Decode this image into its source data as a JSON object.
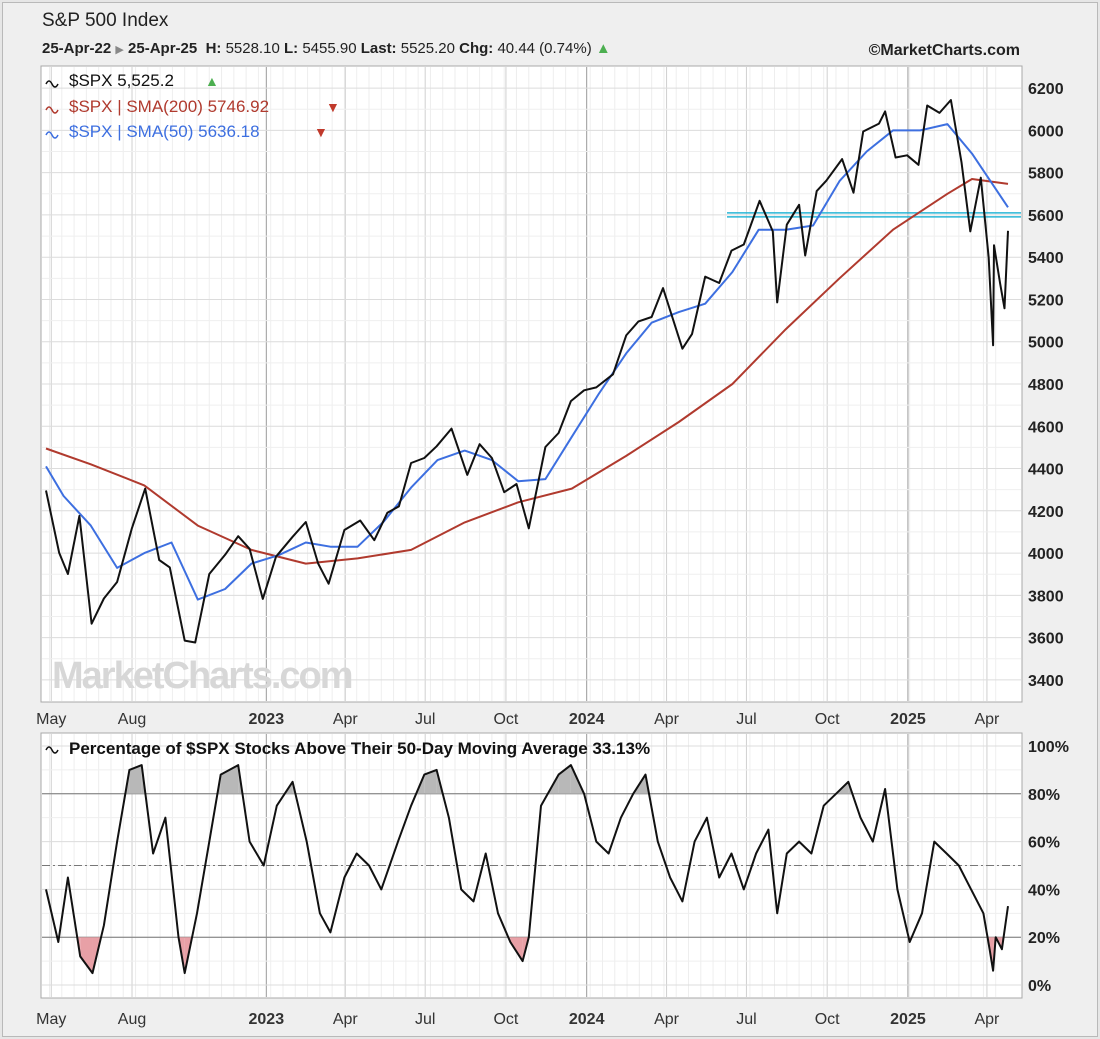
{
  "header": {
    "title": "S&P 500 Index",
    "start_date": "25-Apr-22",
    "end_date": "25-Apr-25",
    "high_label": "H:",
    "high": "5528.10",
    "low_label": "L:",
    "low": "5455.90",
    "last_label": "Last:",
    "last": "5525.20",
    "chg_label": "Chg:",
    "chg": "40.44 (0.74%)",
    "copyright": "©MarketCharts.com"
  },
  "legend": {
    "price": "$SPX 5,525.2",
    "sma200": "$SPX | SMA(200) 5746.92",
    "sma50": "$SPX | SMA(50) 5636.18",
    "breadth": "Percentage of $SPX Stocks Above Their 50-Day Moving Average 33.13%"
  },
  "watermark": "MarketCharts.com",
  "colors": {
    "price": "#111111",
    "sma200": "#b03a2e",
    "sma50": "#3d6fe0",
    "support": "#29b6d6",
    "overbought_fill": "#b8b8b8",
    "oversold_fill": "#e8a0a6",
    "up_arrow": "#4caf50",
    "down_arrow": "#c0392b"
  },
  "chart_data": [
    {
      "type": "line",
      "title": "S&P 500 Index",
      "x_ticks": [
        "May",
        "Aug",
        "2023",
        "Apr",
        "Jul",
        "Oct",
        "2024",
        "Apr",
        "Jul",
        "Oct",
        "2025",
        "Apr"
      ],
      "y_ticks": [
        3400,
        3600,
        3800,
        4000,
        4200,
        4400,
        4600,
        4800,
        5000,
        5200,
        5400,
        5600,
        5800,
        6000,
        6200
      ],
      "ylim": [
        3300,
        6300
      ],
      "grid": true,
      "legend_position": "top-left",
      "support_line": 5600,
      "series": [
        {
          "name": "$SPX",
          "x": [
            "2022-04-25",
            "2022-05-10",
            "2022-05-20",
            "2022-06-02",
            "2022-06-16",
            "2022-06-30",
            "2022-07-15",
            "2022-08-01",
            "2022-08-16",
            "2022-09-01",
            "2022-09-13",
            "2022-09-30",
            "2022-10-12",
            "2022-10-28",
            "2022-11-15",
            "2022-11-30",
            "2022-12-13",
            "2022-12-28",
            "2023-01-12",
            "2023-01-31",
            "2023-02-15",
            "2023-03-01",
            "2023-03-13",
            "2023-03-31",
            "2023-04-18",
            "2023-05-04",
            "2023-05-19",
            "2023-06-01",
            "2023-06-15",
            "2023-06-30",
            "2023-07-14",
            "2023-07-31",
            "2023-08-18",
            "2023-09-01",
            "2023-09-15",
            "2023-09-29",
            "2023-10-13",
            "2023-10-27",
            "2023-11-15",
            "2023-11-30",
            "2023-12-14",
            "2023-12-29",
            "2024-01-12",
            "2024-01-31",
            "2024-02-15",
            "2024-02-29",
            "2024-03-15",
            "2024-03-28",
            "2024-04-19",
            "2024-04-30",
            "2024-05-15",
            "2024-05-31",
            "2024-06-14",
            "2024-06-28",
            "2024-07-16",
            "2024-07-31",
            "2024-08-05",
            "2024-08-16",
            "2024-08-30",
            "2024-09-06",
            "2024-09-19",
            "2024-09-30",
            "2024-10-18",
            "2024-10-31",
            "2024-11-11",
            "2024-11-29",
            "2024-12-06",
            "2024-12-18",
            "2024-12-31",
            "2025-01-13",
            "2025-01-23",
            "2025-02-06",
            "2025-02-19",
            "2025-03-03",
            "2025-03-13",
            "2025-03-25",
            "2025-04-03",
            "2025-04-08",
            "2025-04-09",
            "2025-04-16",
            "2025-04-21",
            "2025-04-25"
          ],
          "y": [
            4296,
            4001,
            3901,
            4176,
            3666,
            3785,
            3863,
            4119,
            4305,
            3967,
            3932,
            3586,
            3577,
            3901,
            3992,
            4080,
            4020,
            3783,
            3983,
            4077,
            4147,
            3951,
            3855,
            4109,
            4154,
            4061,
            4191,
            4221,
            4426,
            4450,
            4505,
            4589,
            4370,
            4515,
            4450,
            4288,
            4327,
            4117,
            4502,
            4568,
            4719,
            4770,
            4784,
            4846,
            5030,
            5096,
            5117,
            5254,
            4967,
            5036,
            5308,
            5278,
            5431,
            5460,
            5667,
            5522,
            5186,
            5554,
            5648,
            5408,
            5713,
            5762,
            5864,
            5705,
            5995,
            6032,
            6090,
            5872,
            5882,
            5837,
            6118,
            6083,
            6144,
            5849,
            5522,
            5776,
            5397,
            4983,
            5457,
            5276,
            5158,
            5525
          ]
        },
        {
          "name": "SMA(200)",
          "x": [
            "2022-04-25",
            "2022-06-15",
            "2022-08-15",
            "2022-10-15",
            "2022-12-15",
            "2023-02-15",
            "2023-04-15",
            "2023-06-15",
            "2023-08-15",
            "2023-10-15",
            "2023-12-15",
            "2024-02-15",
            "2024-04-15",
            "2024-06-15",
            "2024-08-15",
            "2024-10-15",
            "2024-12-15",
            "2025-02-15",
            "2025-03-15",
            "2025-04-25"
          ],
          "y": [
            4495,
            4420,
            4320,
            4130,
            4015,
            3950,
            3975,
            4015,
            4145,
            4240,
            4305,
            4460,
            4620,
            4800,
            5060,
            5300,
            5530,
            5700,
            5770,
            5747
          ]
        },
        {
          "name": "SMA(50)",
          "x": [
            "2022-04-25",
            "2022-05-15",
            "2022-06-15",
            "2022-07-15",
            "2022-08-15",
            "2022-09-15",
            "2022-10-15",
            "2022-11-15",
            "2022-12-15",
            "2023-01-15",
            "2023-02-15",
            "2023-03-15",
            "2023-04-15",
            "2023-05-15",
            "2023-06-15",
            "2023-07-15",
            "2023-08-15",
            "2023-09-15",
            "2023-10-15",
            "2023-11-15",
            "2023-12-15",
            "2024-01-15",
            "2024-02-15",
            "2024-03-15",
            "2024-04-15",
            "2024-05-15",
            "2024-06-15",
            "2024-07-15",
            "2024-08-15",
            "2024-09-15",
            "2024-10-15",
            "2024-11-15",
            "2024-12-15",
            "2025-01-15",
            "2025-02-15",
            "2025-03-15",
            "2025-04-25"
          ],
          "y": [
            4410,
            4270,
            4130,
            3930,
            4000,
            4050,
            3780,
            3830,
            3950,
            3990,
            4050,
            4030,
            4030,
            4150,
            4310,
            4440,
            4485,
            4440,
            4340,
            4350,
            4550,
            4755,
            4945,
            5090,
            5140,
            5180,
            5330,
            5530,
            5530,
            5550,
            5760,
            5900,
            6000,
            6000,
            6030,
            5890,
            5636
          ]
        }
      ]
    },
    {
      "type": "line",
      "title": "Percentage of $SPX Stocks Above Their 50-Day Moving Average 33.13%",
      "x_ticks": [
        "May",
        "Aug",
        "2023",
        "Apr",
        "Jul",
        "Oct",
        "2024",
        "Apr",
        "Jul",
        "Oct",
        "2025",
        "Apr"
      ],
      "y_ticks": [
        "0%",
        "20%",
        "40%",
        "60%",
        "80%",
        "100%"
      ],
      "ylim": [
        -5,
        105
      ],
      "reference_lines": [
        80,
        50,
        20
      ],
      "grid": true,
      "legend_position": "top-left",
      "series": [
        {
          "name": "Percentage of $SPX Stocks Above Their 50-Day Moving Average",
          "x": [
            "2022-04-25",
            "2022-05-09",
            "2022-05-20",
            "2022-06-03",
            "2022-06-17",
            "2022-06-30",
            "2022-07-15",
            "2022-07-29",
            "2022-08-12",
            "2022-08-25",
            "2022-09-08",
            "2022-09-23",
            "2022-09-30",
            "2022-10-14",
            "2022-10-28",
            "2022-11-10",
            "2022-11-30",
            "2022-12-13",
            "2022-12-29",
            "2023-01-13",
            "2023-01-31",
            "2023-02-16",
            "2023-03-03",
            "2023-03-15",
            "2023-03-31",
            "2023-04-14",
            "2023-04-28",
            "2023-05-12",
            "2023-05-31",
            "2023-06-15",
            "2023-06-30",
            "2023-07-14",
            "2023-07-28",
            "2023-08-11",
            "2023-08-25",
            "2023-09-08",
            "2023-09-22",
            "2023-10-06",
            "2023-10-20",
            "2023-10-27",
            "2023-11-10",
            "2023-11-30",
            "2023-12-14",
            "2023-12-29",
            "2024-01-12",
            "2024-01-26",
            "2024-02-09",
            "2024-02-23",
            "2024-03-08",
            "2024-03-22",
            "2024-04-05",
            "2024-04-19",
            "2024-05-03",
            "2024-05-17",
            "2024-05-31",
            "2024-06-14",
            "2024-06-28",
            "2024-07-12",
            "2024-07-26",
            "2024-08-05",
            "2024-08-16",
            "2024-08-30",
            "2024-09-13",
            "2024-09-27",
            "2024-10-11",
            "2024-10-25",
            "2024-11-08",
            "2024-11-22",
            "2024-12-06",
            "2024-12-20",
            "2025-01-03",
            "2025-01-17",
            "2025-01-31",
            "2025-02-14",
            "2025-02-28",
            "2025-03-14",
            "2025-03-28",
            "2025-04-04",
            "2025-04-08",
            "2025-04-11",
            "2025-04-18",
            "2025-04-25"
          ],
          "y": [
            40,
            18,
            45,
            12,
            5,
            25,
            60,
            90,
            92,
            55,
            70,
            20,
            5,
            30,
            60,
            88,
            92,
            60,
            50,
            75,
            85,
            60,
            30,
            22,
            45,
            55,
            50,
            40,
            60,
            75,
            88,
            90,
            70,
            40,
            35,
            55,
            30,
            18,
            10,
            20,
            75,
            88,
            92,
            80,
            60,
            55,
            70,
            80,
            88,
            60,
            45,
            35,
            60,
            70,
            45,
            55,
            40,
            55,
            65,
            30,
            55,
            60,
            55,
            75,
            80,
            85,
            70,
            60,
            82,
            40,
            18,
            30,
            60,
            55,
            50,
            40,
            30,
            15,
            6,
            20,
            15,
            33
          ]
        }
      ]
    }
  ]
}
